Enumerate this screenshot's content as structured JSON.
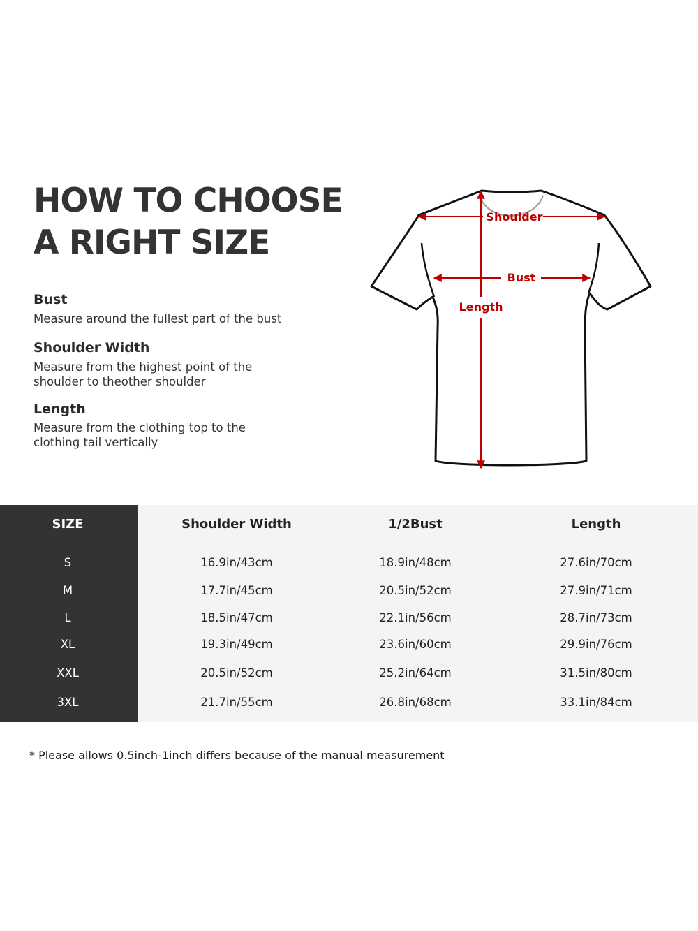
{
  "title_lines": [
    "HOW TO CHOOSE",
    "A RIGHT SIZE"
  ],
  "guide": [
    {
      "term": "Bust",
      "description": [
        "Measure around the fullest part of the bust"
      ]
    },
    {
      "term": "Shoulder Width",
      "description": [
        "Measure from the highest point of the",
        "shoulder to theother shoulder"
      ]
    },
    {
      "term": "Length",
      "description": [
        "Measure from the clothing top to the",
        "clothing tail vertically"
      ]
    }
  ],
  "diagram": {
    "labels": {
      "shoulder": "Shoulder",
      "bust": "Bust",
      "length": "Length"
    },
    "arrow_color": "#c00000"
  },
  "table": {
    "headers": [
      "SIZE",
      "Shoulder Width",
      "1/2Bust",
      "Length"
    ],
    "rows": [
      [
        "S",
        "16.9in/43cm",
        "18.9in/48cm",
        "27.6in/70cm"
      ],
      [
        "M",
        "17.7in/45cm",
        "20.5in/52cm",
        "27.9in/71cm"
      ],
      [
        "L",
        "18.5in/47cm",
        "22.1in/56cm",
        "28.7in/73cm"
      ],
      [
        "XL",
        "19.3in/49cm",
        "23.6in/60cm",
        "29.9in/76cm"
      ],
      [
        "XXL",
        "20.5in/52cm",
        "25.2in/64cm",
        "31.5in/80cm"
      ],
      [
        "3XL",
        "21.7in/55cm",
        "26.8in/68cm",
        "33.1in/84cm"
      ]
    ]
  },
  "note": "* Please allows 0.5inch-1inch differs because of the  manual measurement"
}
